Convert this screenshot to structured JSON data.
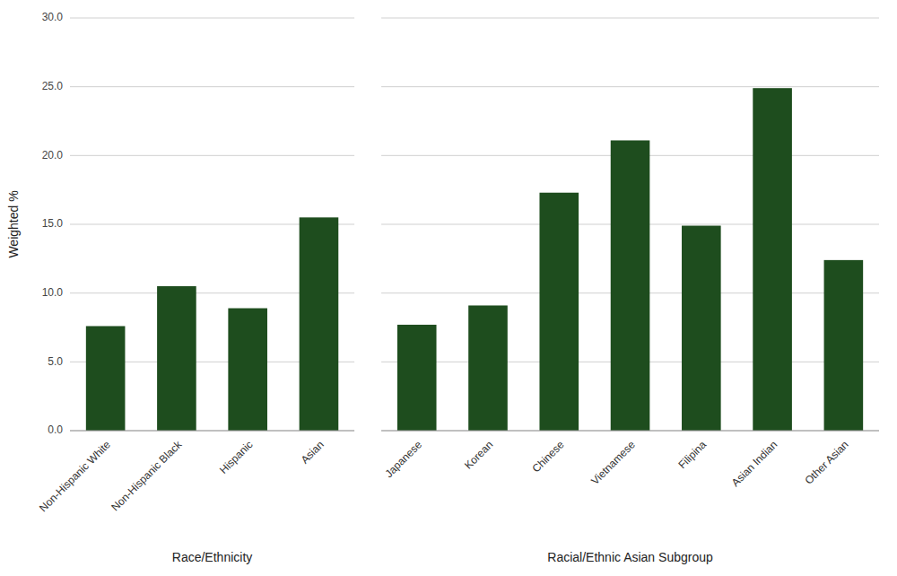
{
  "chart_data": [
    {
      "type": "bar",
      "categories": [
        "Non-Hispanic White",
        "Non-Hispanic Black",
        "Hispanic",
        "Asian"
      ],
      "values": [
        7.6,
        10.5,
        8.9,
        15.5
      ],
      "color": "#1e4d1e",
      "xlabel": "Race/Ethnicity",
      "ylabel": "Weighted %",
      "ylim": [
        0,
        30.0
      ],
      "yticks": [
        {
          "value": 0.0,
          "label": "0.0"
        },
        {
          "value": 5.0,
          "label": "5.0"
        },
        {
          "value": 10.0,
          "label": "10.0"
        },
        {
          "value": 15.0,
          "label": "15.0"
        },
        {
          "value": 20.0,
          "label": "20.0"
        },
        {
          "value": 25.0,
          "label": "25.0"
        },
        {
          "value": 30.0,
          "label": "30.0"
        }
      ],
      "grid": true
    },
    {
      "type": "bar",
      "categories": [
        "Japanese",
        "Korean",
        "Chinese",
        "Vietnamese",
        "Filipina",
        "Asian Indian",
        "Other Asian"
      ],
      "values": [
        7.7,
        9.1,
        17.3,
        21.1,
        14.9,
        24.9,
        12.4
      ],
      "color": "#1e4d1e",
      "xlabel": "Racial/Ethnic Asian Subgroup",
      "ylim": [
        0,
        30.0
      ],
      "yticks": [
        0.0,
        5.0,
        10.0,
        15.0,
        20.0,
        25.0,
        30.0
      ],
      "grid": true,
      "tick_labels": "x"
    }
  ]
}
